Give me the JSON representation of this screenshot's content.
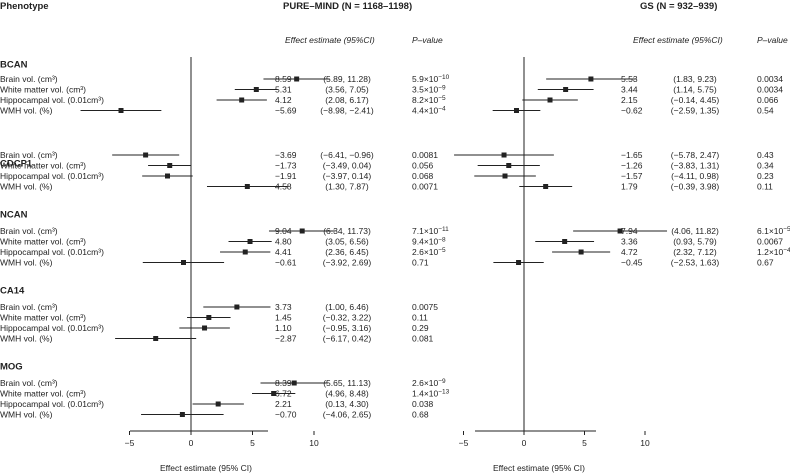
{
  "header": {
    "phenotype": "Phenotype",
    "panels": [
      "PURE–MIND (N = 1168–1198)",
      "GS (N = 932–939)"
    ],
    "effect_col": "Effect estimate (95%CI)",
    "p_col": "P–value"
  },
  "chart_data": {
    "type": "forest",
    "xlabel": "Effect estimate (95% CI)",
    "xticks": [
      -5,
      0,
      5,
      10
    ],
    "xlim": [
      -9,
      13
    ],
    "reference_line": 0,
    "row_labels": [
      "Brain vol. (cm³)",
      "White matter vol. (cm³)",
      "Hippocampal vol. (0.01cm³)",
      "WMH vol. (%)"
    ],
    "panels": [
      {
        "name": "PURE–MIND (N = 1168–1198)",
        "groups": [
          {
            "name": "BCAN",
            "rows": [
              {
                "est": 8.59,
                "lo": 5.89,
                "hi": 11.28,
                "est_text": "8.59",
                "ci_text": "(5.89, 11.28)",
                "p_text": "5.9×10",
                "p_exp": "−10"
              },
              {
                "est": 5.31,
                "lo": 3.56,
                "hi": 7.05,
                "est_text": "5.31",
                "ci_text": "(3.56, 7.05)",
                "p_text": "3.5×10",
                "p_exp": "−9"
              },
              {
                "est": 4.12,
                "lo": 2.08,
                "hi": 6.17,
                "est_text": "4.12",
                "ci_text": "(2.08, 6.17)",
                "p_text": "8.2×10",
                "p_exp": "−5"
              },
              {
                "est": -5.69,
                "lo": -8.98,
                "hi": -2.41,
                "est_text": "−5.69",
                "ci_text": "(−8.98, −2.41)",
                "p_text": "4.4×10",
                "p_exp": "−4"
              }
            ]
          },
          {
            "name": "CDCP1",
            "rows": [
              {
                "est": -3.69,
                "lo": -6.41,
                "hi": -0.96,
                "est_text": "−3.69",
                "ci_text": "(−6.41, −0.96)",
                "p_text": "0.0081",
                "p_exp": ""
              },
              {
                "est": -1.73,
                "lo": -3.49,
                "hi": 0.04,
                "est_text": "−1.73",
                "ci_text": "(−3.49, 0.04)",
                "p_text": "0.056",
                "p_exp": ""
              },
              {
                "est": -1.91,
                "lo": -3.97,
                "hi": 0.14,
                "est_text": "−1.91",
                "ci_text": "(−3.97, 0.14)",
                "p_text": "0.068",
                "p_exp": ""
              },
              {
                "est": 4.58,
                "lo": 1.3,
                "hi": 7.87,
                "est_text": "4.58",
                "ci_text": "(1.30, 7.87)",
                "p_text": "0.0071",
                "p_exp": ""
              }
            ]
          },
          {
            "name": "NCAN",
            "rows": [
              {
                "est": 9.04,
                "lo": 6.34,
                "hi": 11.73,
                "est_text": "9.04",
                "ci_text": "(6.34, 11.73)",
                "p_text": "7.1×10",
                "p_exp": "−11"
              },
              {
                "est": 4.8,
                "lo": 3.05,
                "hi": 6.56,
                "est_text": "4.80",
                "ci_text": "(3.05, 6.56)",
                "p_text": "9.4×10",
                "p_exp": "−8"
              },
              {
                "est": 4.41,
                "lo": 2.36,
                "hi": 6.45,
                "est_text": "4.41",
                "ci_text": "(2.36, 6.45)",
                "p_text": "2.6×10",
                "p_exp": "−5"
              },
              {
                "est": -0.61,
                "lo": -3.92,
                "hi": 2.69,
                "est_text": "−0.61",
                "ci_text": "(−3.92, 2.69)",
                "p_text": "0.71",
                "p_exp": ""
              }
            ]
          },
          {
            "name": "CA14",
            "rows": [
              {
                "est": 3.73,
                "lo": 1.0,
                "hi": 6.46,
                "est_text": "3.73",
                "ci_text": "(1.00, 6.46)",
                "p_text": "0.0075",
                "p_exp": ""
              },
              {
                "est": 1.45,
                "lo": -0.32,
                "hi": 3.22,
                "est_text": "1.45",
                "ci_text": "(−0.32, 3.22)",
                "p_text": "0.11",
                "p_exp": ""
              },
              {
                "est": 1.1,
                "lo": -0.95,
                "hi": 3.16,
                "est_text": "1.10",
                "ci_text": "(−0.95, 3.16)",
                "p_text": "0.29",
                "p_exp": ""
              },
              {
                "est": -2.87,
                "lo": -6.17,
                "hi": 0.42,
                "est_text": "−2.87",
                "ci_text": "(−6.17, 0.42)",
                "p_text": "0.081",
                "p_exp": ""
              }
            ]
          },
          {
            "name": "MOG",
            "rows": [
              {
                "est": 8.39,
                "lo": 5.65,
                "hi": 11.13,
                "est_text": "8.39",
                "ci_text": "(5.65, 11.13)",
                "p_text": "2.6×10",
                "p_exp": "−9"
              },
              {
                "est": 6.72,
                "lo": 4.96,
                "hi": 8.48,
                "est_text": "6.72",
                "ci_text": "(4.96, 8.48)",
                "p_text": "1.4×10",
                "p_exp": "−13"
              },
              {
                "est": 2.21,
                "lo": 0.13,
                "hi": 4.3,
                "est_text": "2.21",
                "ci_text": "(0.13, 4.30)",
                "p_text": "0.038",
                "p_exp": ""
              },
              {
                "est": -0.7,
                "lo": -4.06,
                "hi": 2.65,
                "est_text": "−0.70",
                "ci_text": "(−4.06, 2.65)",
                "p_text": "0.68",
                "p_exp": ""
              }
            ]
          }
        ]
      },
      {
        "name": "GS (N = 932–939)",
        "groups": [
          {
            "name": "BCAN",
            "rows": [
              {
                "est": 5.53,
                "lo": 1.83,
                "hi": 9.23,
                "est_text": "5.53",
                "ci_text": "(1.83, 9.23)",
                "p_text": "0.0034",
                "p_exp": ""
              },
              {
                "est": 3.44,
                "lo": 1.14,
                "hi": 5.75,
                "est_text": "3.44",
                "ci_text": "(1.14, 5.75)",
                "p_text": "0.0034",
                "p_exp": ""
              },
              {
                "est": 2.15,
                "lo": -0.14,
                "hi": 4.45,
                "est_text": "2.15",
                "ci_text": "(−0.14, 4.45)",
                "p_text": "0.066",
                "p_exp": ""
              },
              {
                "est": -0.62,
                "lo": -2.59,
                "hi": 1.35,
                "est_text": "−0.62",
                "ci_text": "(−2.59, 1.35)",
                "p_text": "0.54",
                "p_exp": ""
              }
            ]
          },
          {
            "name": "CDCP1",
            "rows": [
              {
                "est": -1.65,
                "lo": -5.78,
                "hi": 2.47,
                "est_text": "−1.65",
                "ci_text": "(−5.78, 2.47)",
                "p_text": "0.43",
                "p_exp": ""
              },
              {
                "est": -1.26,
                "lo": -3.83,
                "hi": 1.31,
                "est_text": "−1.26",
                "ci_text": "(−3.83, 1.31)",
                "p_text": "0.34",
                "p_exp": ""
              },
              {
                "est": -1.57,
                "lo": -4.11,
                "hi": 0.98,
                "est_text": "−1.57",
                "ci_text": "(−4.11, 0.98)",
                "p_text": "0.23",
                "p_exp": ""
              },
              {
                "est": 1.79,
                "lo": -0.39,
                "hi": 3.98,
                "est_text": "1.79",
                "ci_text": "(−0.39, 3.98)",
                "p_text": "0.11",
                "p_exp": ""
              }
            ]
          },
          {
            "name": "NCAN",
            "rows": [
              {
                "est": 7.94,
                "lo": 4.06,
                "hi": 11.82,
                "est_text": "7.94",
                "ci_text": "(4.06, 11.82)",
                "p_text": "6.1×10",
                "p_exp": "−5"
              },
              {
                "est": 3.36,
                "lo": 0.93,
                "hi": 5.79,
                "est_text": "3.36",
                "ci_text": "(0.93, 5.79)",
                "p_text": "0.0067",
                "p_exp": ""
              },
              {
                "est": 4.72,
                "lo": 2.32,
                "hi": 7.12,
                "est_text": "4.72",
                "ci_text": "(2.32, 7.12)",
                "p_text": "1.2×10",
                "p_exp": "−4"
              },
              {
                "est": -0.45,
                "lo": -2.53,
                "hi": 1.63,
                "est_text": "−0.45",
                "ci_text": "(−2.53, 1.63)",
                "p_text": "0.67",
                "p_exp": ""
              }
            ]
          }
        ]
      }
    ]
  }
}
